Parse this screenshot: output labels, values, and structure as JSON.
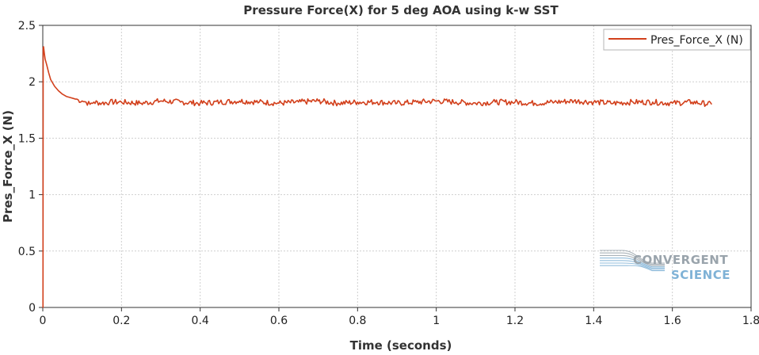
{
  "chart_data": {
    "type": "line",
    "title": "Pressure Force(X) for 5 deg AOA using k-w SST",
    "xlabel": "Time (seconds)",
    "ylabel": "Pres_Force_X (N)",
    "xlim": [
      0,
      1.8
    ],
    "ylim": [
      0,
      2.5
    ],
    "x_ticks": [
      0,
      0.2,
      0.4,
      0.6,
      0.8,
      1,
      1.2,
      1.4,
      1.6,
      1.8
    ],
    "y_ticks": [
      0,
      0.5,
      1,
      1.5,
      2,
      2.5
    ],
    "grid": true,
    "legend_position": "top-right",
    "series": [
      {
        "name": "Pres_Force_X (N)",
        "color": "#d2401c",
        "x": [
          0,
          0.0005,
          0.001,
          0.002,
          0.004,
          0.006,
          0.01,
          0.015,
          0.02,
          0.03,
          0.04,
          0.05,
          0.06,
          0.07,
          0.08,
          0.09,
          0.1,
          0.11,
          0.12,
          0.13,
          0.15,
          0.17,
          0.2,
          0.25,
          0.3,
          0.35,
          0.4,
          0.45,
          0.5,
          0.55,
          0.6,
          0.65,
          0.7,
          0.75,
          0.8,
          0.85,
          0.9,
          0.95,
          1.0,
          1.05,
          1.1,
          1.15,
          1.2,
          1.25,
          1.3,
          1.35,
          1.4,
          1.45,
          1.5,
          1.55,
          1.6,
          1.65,
          1.7
        ],
        "y": [
          0,
          0,
          2.3,
          2.31,
          2.25,
          2.2,
          2.15,
          2.08,
          2.02,
          1.96,
          1.92,
          1.89,
          1.87,
          1.86,
          1.85,
          1.84,
          1.83,
          1.82,
          1.8,
          1.82,
          1.81,
          1.82,
          1.82,
          1.81,
          1.83,
          1.82,
          1.81,
          1.82,
          1.83,
          1.82,
          1.81,
          1.82,
          1.83,
          1.81,
          1.82,
          1.82,
          1.81,
          1.82,
          1.83,
          1.82,
          1.81,
          1.82,
          1.82,
          1.81,
          1.82,
          1.83,
          1.82,
          1.81,
          1.82,
          1.82,
          1.81,
          1.82,
          1.8
        ]
      }
    ],
    "watermark": {
      "line1": "CONVERGENT",
      "line2": "SCIENCE",
      "color1": "#9aa4ac",
      "color2": "#7fb2d6"
    }
  }
}
